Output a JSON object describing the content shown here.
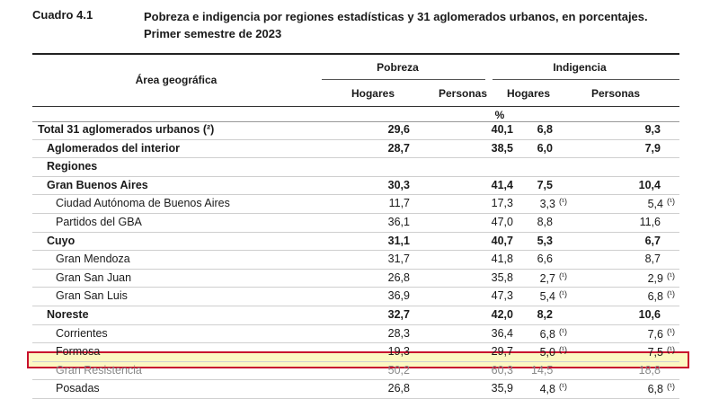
{
  "header": {
    "cuadro": "Cuadro 4.1",
    "title_line1": "Pobreza e indigencia por regiones estadísticas y 31 aglomerados urbanos, en porcentajes.",
    "title_line2": "Primer semestre de 2023"
  },
  "columns": {
    "area": "Área geográfica",
    "pobreza": "Pobreza",
    "indigencia": "Indigencia",
    "hogares": "Hogares",
    "personas": "Personas",
    "unit": "%"
  },
  "rows": [
    {
      "label": "Total 31 aglomerados urbanos (²)",
      "indent": 0,
      "bold": true,
      "v": [
        "29,6",
        "40,1",
        "6,8",
        "9,3"
      ],
      "n": [
        "",
        "",
        "",
        ""
      ]
    },
    {
      "label": "Aglomerados del interior",
      "indent": 1,
      "bold": true,
      "v": [
        "28,7",
        "38,5",
        "6,0",
        "7,9"
      ],
      "n": [
        "",
        "",
        "",
        ""
      ]
    },
    {
      "label": "Regiones",
      "indent": 1,
      "bold": true,
      "v": [
        "",
        "",
        "",
        ""
      ],
      "n": [
        "",
        "",
        "",
        ""
      ]
    },
    {
      "label": "Gran Buenos Aires",
      "indent": 2,
      "bold": true,
      "v": [
        "30,3",
        "41,4",
        "7,5",
        "10,4"
      ],
      "n": [
        "",
        "",
        "",
        ""
      ]
    },
    {
      "label": "Ciudad Autónoma de Buenos Aires",
      "indent": 3,
      "bold": false,
      "v": [
        "11,7",
        "17,3",
        "3,3",
        "5,4"
      ],
      "n": [
        "",
        "",
        "(¹)",
        "(¹)"
      ]
    },
    {
      "label": "Partidos del GBA",
      "indent": 3,
      "bold": false,
      "v": [
        "36,1",
        "47,0",
        "8,8",
        "11,6"
      ],
      "n": [
        "",
        "",
        "",
        ""
      ]
    },
    {
      "label": "Cuyo",
      "indent": 2,
      "bold": true,
      "v": [
        "31,1",
        "40,7",
        "5,3",
        "6,7"
      ],
      "n": [
        "",
        "",
        "",
        ""
      ]
    },
    {
      "label": "Gran Mendoza",
      "indent": 3,
      "bold": false,
      "v": [
        "31,7",
        "41,8",
        "6,6",
        "8,7"
      ],
      "n": [
        "",
        "",
        "",
        ""
      ]
    },
    {
      "label": "Gran San Juan",
      "indent": 3,
      "bold": false,
      "v": [
        "26,8",
        "35,8",
        "2,7",
        "2,9"
      ],
      "n": [
        "",
        "",
        "(¹)",
        "(¹)"
      ]
    },
    {
      "label": "Gran San Luis",
      "indent": 3,
      "bold": false,
      "v": [
        "36,9",
        "47,3",
        "5,4",
        "6,8"
      ],
      "n": [
        "",
        "",
        "(¹)",
        "(¹)"
      ]
    },
    {
      "label": "Noreste",
      "indent": 2,
      "bold": true,
      "v": [
        "32,7",
        "42,0",
        "8,2",
        "10,6"
      ],
      "n": [
        "",
        "",
        "",
        ""
      ]
    },
    {
      "label": "Corrientes",
      "indent": 3,
      "bold": false,
      "v": [
        "28,3",
        "36,4",
        "6,8",
        "7,6"
      ],
      "n": [
        "",
        "",
        "(¹)",
        "(¹)"
      ]
    },
    {
      "label": "Formosa",
      "indent": 3,
      "bold": false,
      "v": [
        "19,3",
        "29,7",
        "5,0",
        "7,5"
      ],
      "n": [
        "",
        "",
        "(¹)",
        "(¹)"
      ]
    },
    {
      "label": "Gran Resistencia",
      "indent": 3,
      "bold": false,
      "highlight": true,
      "v": [
        "50,2",
        "60,3",
        "14,5",
        "18,8"
      ],
      "n": [
        "",
        "",
        "",
        ""
      ]
    },
    {
      "label": "Posadas",
      "indent": 3,
      "bold": false,
      "v": [
        "26,8",
        "35,9",
        "4,8",
        "6,8"
      ],
      "n": [
        "",
        "",
        "(¹)",
        "(¹)"
      ]
    }
  ],
  "colors": {
    "highlight_fill": "#fcf8c2",
    "highlight_border": "#c8102e"
  }
}
